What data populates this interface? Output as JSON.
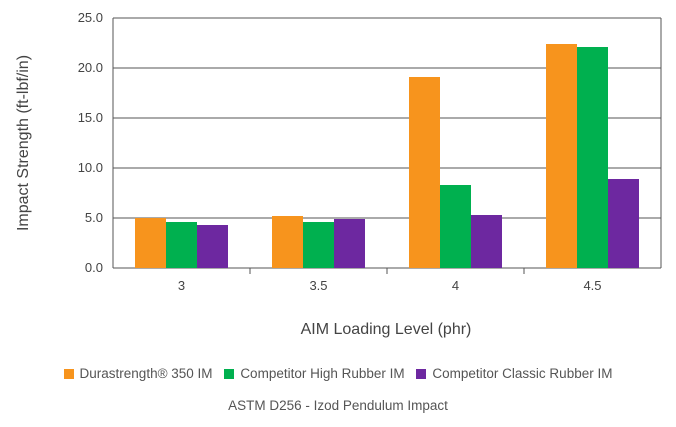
{
  "chart_data": {
    "type": "bar",
    "title": "",
    "xlabel": "AIM Loading Level (phr)",
    "ylabel": "Impact Strength (ft-lbf/in)",
    "ylim": [
      0,
      25
    ],
    "yticks": [
      "0.0",
      "5.0",
      "10.0",
      "15.0",
      "20.0",
      "25.0"
    ],
    "categories": [
      "3",
      "3.5",
      "4",
      "4.5"
    ],
    "grid": true,
    "legend_position": "bottom",
    "series": [
      {
        "name": "Durastrength® 350 IM",
        "color": "#f7941d",
        "values": [
          5.0,
          5.2,
          19.1,
          22.4
        ]
      },
      {
        "name": "Competitor High Rubber IM",
        "color": "#00b04f",
        "values": [
          4.6,
          4.6,
          8.3,
          22.1
        ]
      },
      {
        "name": "Competitor Classic Rubber IM",
        "color": "#6d28a0",
        "values": [
          4.3,
          4.9,
          5.3,
          8.9
        ]
      }
    ],
    "footnote": "ASTM D256 - Izod Pendulum Impact"
  }
}
